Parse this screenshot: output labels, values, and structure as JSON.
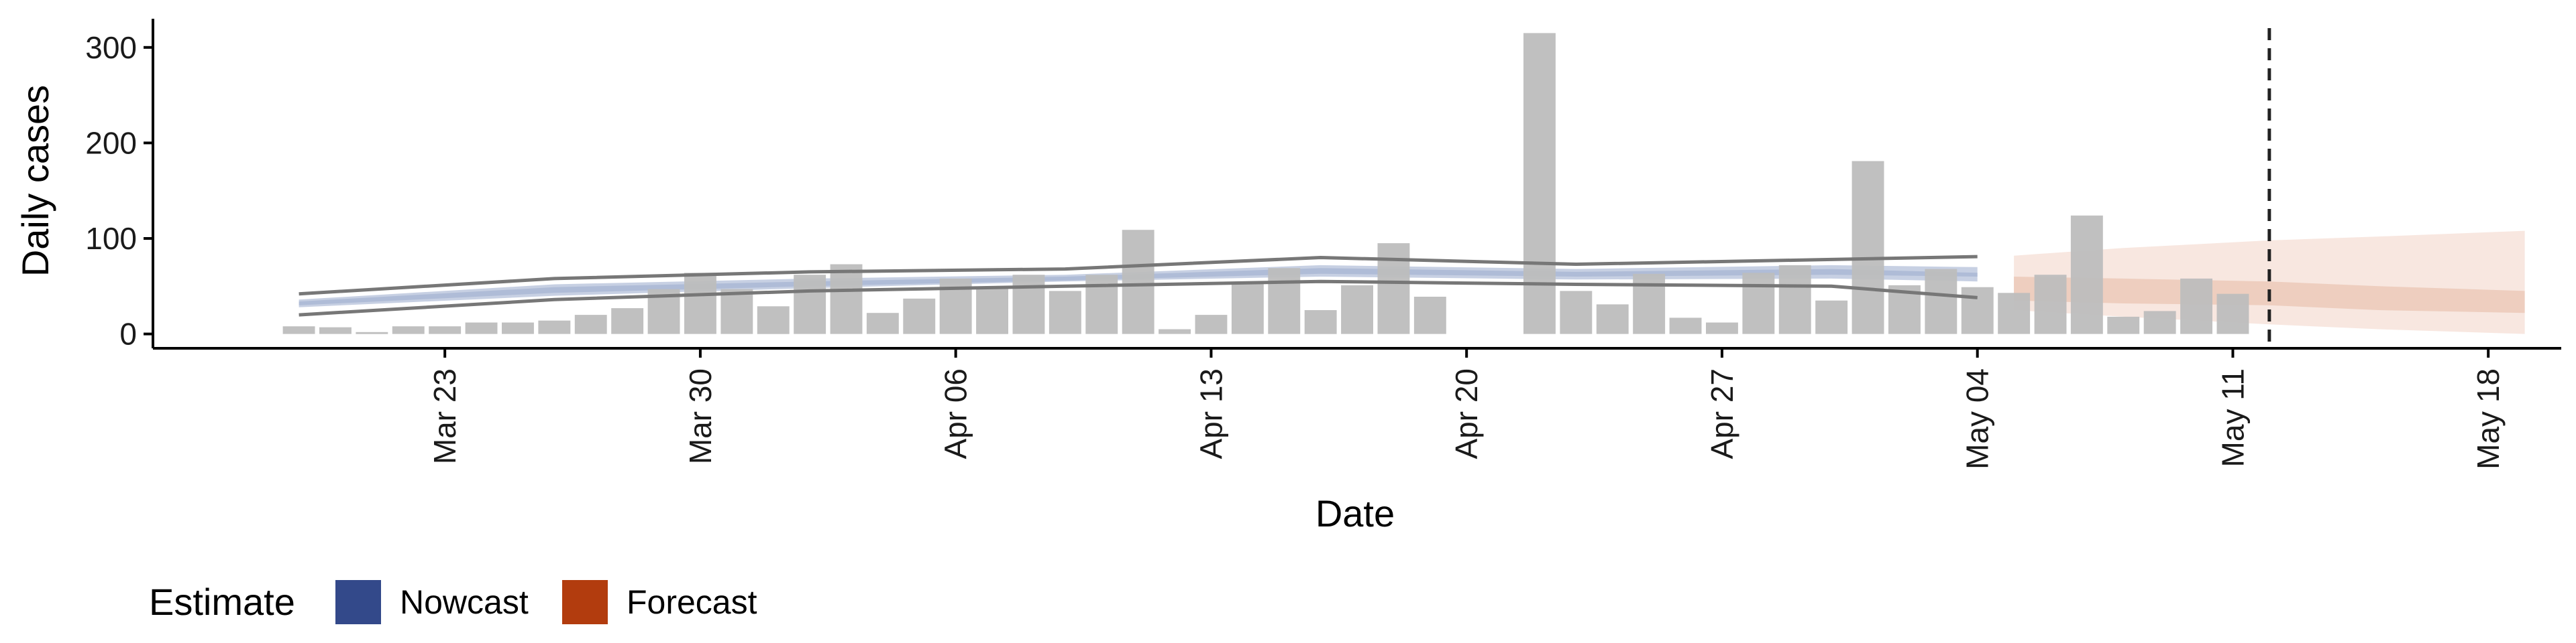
{
  "chart_data": {
    "type": "bar",
    "xlabel": "Date",
    "ylabel": "Daily cases",
    "ylim": [
      -15,
      330
    ],
    "xlim": [
      "2020-03-15",
      "2020-05-20"
    ],
    "y_ticks": [
      0,
      100,
      200,
      300
    ],
    "x_ticks": [
      {
        "date": "2020-03-23",
        "label": "Mar 23"
      },
      {
        "date": "2020-03-30",
        "label": "Mar 30"
      },
      {
        "date": "2020-04-06",
        "label": "Apr 06"
      },
      {
        "date": "2020-04-13",
        "label": "Apr 13"
      },
      {
        "date": "2020-04-20",
        "label": "Apr 20"
      },
      {
        "date": "2020-04-27",
        "label": "Apr 27"
      },
      {
        "date": "2020-05-04",
        "label": "May 04"
      },
      {
        "date": "2020-05-11",
        "label": "May 11"
      },
      {
        "date": "2020-05-18",
        "label": "May 18"
      }
    ],
    "bar_dates_start": "2020-03-19",
    "daily_cases": [
      8,
      7,
      2,
      8,
      8,
      12,
      12,
      14,
      20,
      27,
      47,
      64,
      47,
      29,
      62,
      73,
      22,
      37,
      58,
      48,
      62,
      45,
      62,
      109,
      5,
      20,
      53,
      69,
      25,
      51,
      95,
      39,
      0,
      0,
      315,
      45,
      31,
      63,
      17,
      12,
      64,
      72,
      35,
      181,
      51,
      68,
      49,
      43,
      62,
      124,
      18,
      24,
      58,
      42
    ],
    "estimate_line_dates": [
      "2020-03-19",
      "2020-03-26",
      "2020-04-02",
      "2020-04-09",
      "2020-04-16",
      "2020-04-23",
      "2020-04-30",
      "2020-05-04"
    ],
    "estimate_upper": [
      42,
      58,
      65,
      68,
      80,
      73,
      78,
      81
    ],
    "estimate_lower": [
      20,
      36,
      45,
      50,
      55,
      52,
      50,
      38
    ],
    "nowcast_band_upper": [
      36,
      52,
      58,
      62,
      72,
      68,
      72,
      70
    ],
    "nowcast_band_lower": [
      28,
      40,
      48,
      55,
      60,
      57,
      58,
      55
    ],
    "nowcast_inner_upper": [
      34,
      49,
      55,
      60,
      69,
      65,
      68,
      64
    ],
    "nowcast_inner_lower": [
      30,
      43,
      50,
      56,
      63,
      60,
      62,
      60
    ],
    "forecast_dates": [
      "2020-05-05",
      "2020-05-08",
      "2020-05-12",
      "2020-05-15",
      "2020-05-19"
    ],
    "forecast_outer_upper": [
      82,
      90,
      98,
      102,
      108
    ],
    "forecast_outer_lower": [
      25,
      18,
      10,
      5,
      0
    ],
    "forecast_inner_upper": [
      60,
      58,
      55,
      50,
      45
    ],
    "forecast_inner_lower": [
      35,
      32,
      30,
      25,
      22
    ],
    "vline_date": "2020-05-12",
    "legend": {
      "title": "Estimate",
      "items": [
        {
          "label": "Nowcast",
          "color": "#33498a"
        },
        {
          "label": "Forecast",
          "color": "#b23c0e"
        }
      ],
      "placement": "bottom-left"
    },
    "colors": {
      "bars": "#bdbdbd",
      "estimate_lines": "#777777",
      "nowcast_band": "#b9c4dc",
      "nowcast_inner": "#a5b3d2",
      "forecast_outer": "#f7e3da",
      "forecast_inner": "#ebc8b6",
      "vline": "#222222",
      "axis": "#000000"
    }
  }
}
